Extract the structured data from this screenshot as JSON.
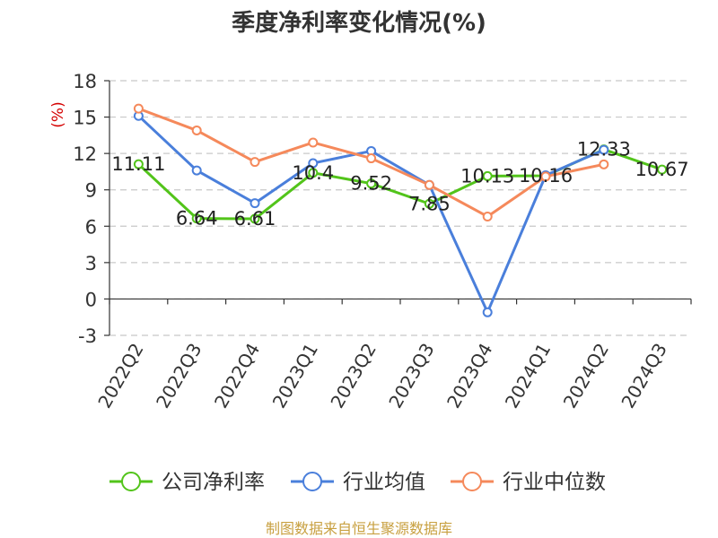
{
  "chart_data": {
    "type": "line",
    "title": "季度净利率变化情况(%)",
    "ylabel": "(%)",
    "categories": [
      "2022Q2",
      "2022Q3",
      "2022Q4",
      "2023Q1",
      "2023Q2",
      "2023Q3",
      "2023Q4",
      "2024Q1",
      "2024Q2",
      "2024Q3"
    ],
    "ylim": [
      -3,
      18
    ],
    "yticks": [
      "18",
      "15",
      "12",
      "9",
      "6",
      "3",
      "0",
      "-3"
    ],
    "grid": true,
    "legend_position": "bottom",
    "series": [
      {
        "name": "公司净利率",
        "color": "#52c41a",
        "values": [
          11.11,
          6.64,
          6.61,
          10.4,
          9.52,
          7.85,
          10.13,
          10.16,
          12.33,
          10.67
        ],
        "labels": [
          "11.11",
          "6.64",
          "6.61",
          "10.4",
          "9.52",
          "7.85",
          "10.13",
          "10.16",
          "12.33",
          "10.67"
        ]
      },
      {
        "name": "行业均值",
        "color": "#4a7fdb",
        "values": [
          15.1,
          10.6,
          7.9,
          11.2,
          12.2,
          9.4,
          -1.1,
          10.2,
          12.3,
          null
        ]
      },
      {
        "name": "行业中位数",
        "color": "#f5895b",
        "values": [
          15.7,
          13.9,
          11.3,
          12.9,
          11.6,
          9.4,
          6.8,
          10.1,
          11.1,
          null
        ]
      }
    ]
  },
  "footer": "制图数据来自恒生聚源数据库"
}
